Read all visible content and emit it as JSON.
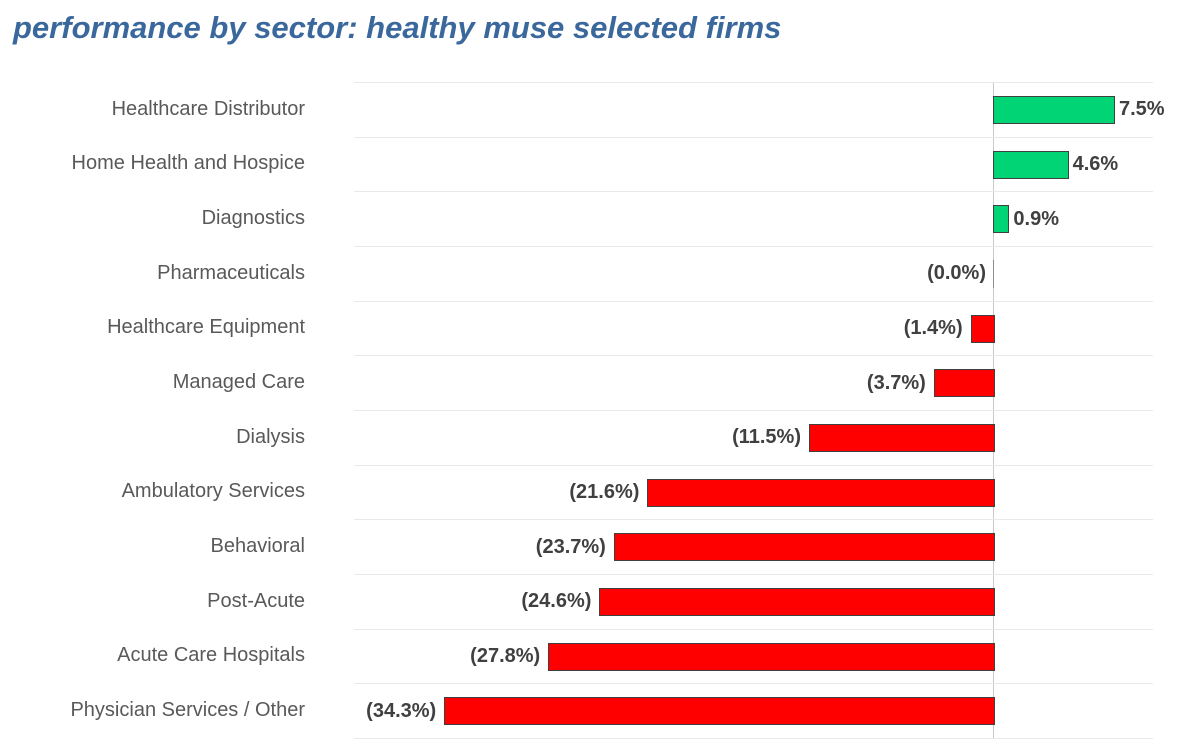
{
  "title": "performance by sector: healthy muse selected firms",
  "colors": {
    "title": "#3a689c",
    "positive_bar": "#00d475",
    "negative_bar": "#ff0000",
    "bar_border": "#404040",
    "gridline": "#e9e9e9",
    "zero_line": "#c9c9c9",
    "zero_tick": "#8c8c8c",
    "category_label": "#595959",
    "value_label": "#404040"
  },
  "chart_data": {
    "type": "bar",
    "orientation": "horizontal",
    "title": "performance by sector: healthy muse selected firms",
    "categories": [
      "Healthcare Distributor",
      "Home Health and Hospice",
      "Diagnostics",
      "Pharmaceuticals",
      "Healthcare Equipment",
      "Managed Care",
      "Dialysis",
      "Ambulatory Services",
      "Behavioral",
      "Post-Acute",
      "Acute Care Hospitals",
      "Physician Services / Other"
    ],
    "values": [
      7.5,
      4.6,
      0.9,
      0.0,
      -1.4,
      -3.7,
      -11.5,
      -21.6,
      -23.7,
      -24.6,
      -27.8,
      -34.3
    ],
    "value_labels": [
      "7.5%",
      "4.6%",
      "0.9%",
      "(0.0%)",
      "(1.4%)",
      "(3.7%)",
      "(11.5%)",
      "(21.6%)",
      "(23.7%)",
      "(24.6%)",
      "(27.8%)",
      "(34.3%)"
    ],
    "xlabel": "",
    "ylabel": "",
    "xlim": [
      -40,
      10
    ],
    "grid": "horizontal-row-separators",
    "legend": "none",
    "units": "percent"
  }
}
